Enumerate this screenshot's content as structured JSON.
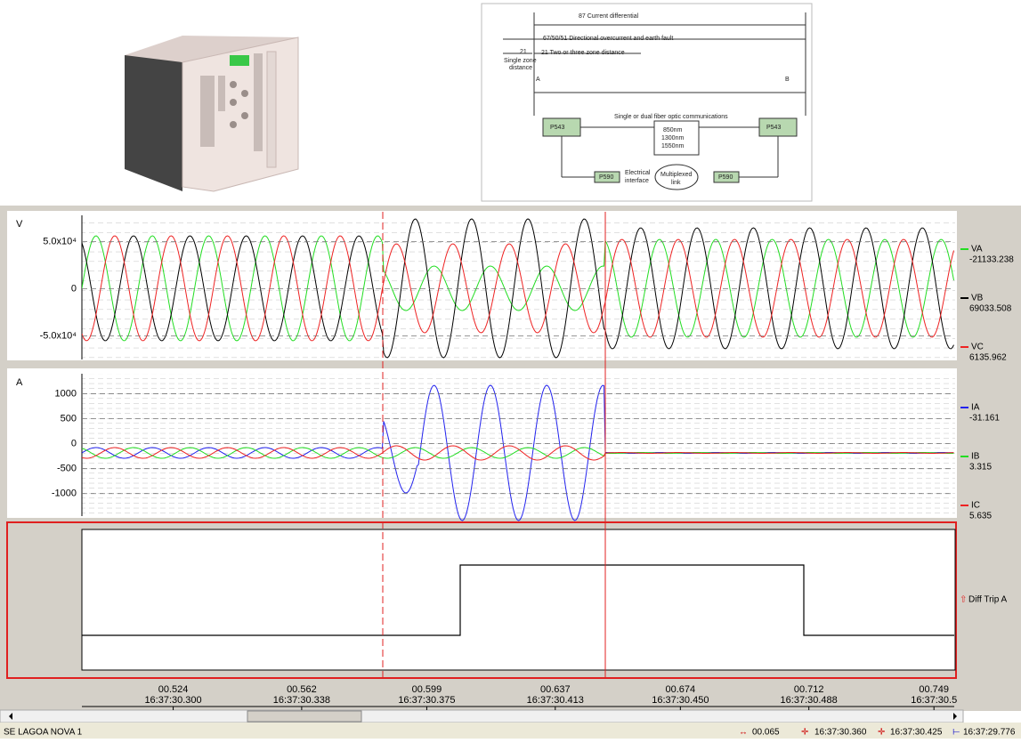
{
  "diagram": {
    "zone_87": "87 Current differential",
    "zone_67": "67/50/51 Directional overcurrent and earth fault",
    "zone_21_left": "21",
    "zone_21": "21 Two or three zone distance",
    "single_zone": [
      "Single zone",
      "distance"
    ],
    "end_a": "A",
    "end_b": "B",
    "fiber": "Single or dual fiber optic communications",
    "relay_left": "P543",
    "relay_right": "P543",
    "wavelengths": [
      "850nm",
      "1300nm",
      "1550nm"
    ],
    "mux_left": "P590",
    "mux_right": "P590",
    "electrical": [
      "Electrical",
      "interface"
    ],
    "multiplexed": [
      "Multiplexed",
      "link"
    ]
  },
  "oscillography": {
    "xlim": [
      0.497,
      0.755
    ],
    "xticks": [
      {
        "value": 0.524,
        "label": "00.524",
        "time": "16:37:30.300"
      },
      {
        "value": 0.562,
        "label": "00.562",
        "time": "16:37:30.338"
      },
      {
        "value": 0.599,
        "label": "00.599",
        "time": "16:37:30.375"
      },
      {
        "value": 0.637,
        "label": "00.637",
        "time": "16:37:30.413"
      },
      {
        "value": 0.674,
        "label": "00.674",
        "time": "16:37:30.450"
      },
      {
        "value": 0.712,
        "label": "00.712",
        "time": "16:37:30.488"
      },
      {
        "value": 0.749,
        "label": "00.749",
        "time": "16:37:30.5"
      }
    ],
    "panels": [
      {
        "axis_label": "V",
        "ylim": [
          -75000,
          78000
        ],
        "yticks": [
          {
            "value": 50000,
            "label": "5.0x10⁴"
          },
          0,
          {
            "value": -50000,
            "label": "-5.0x10⁴"
          }
        ],
        "series": [
          {
            "name": "VA",
            "color": "#22dd22",
            "value": -21133.238
          },
          {
            "name": "VB",
            "color": "#000000",
            "value": 69033.508
          },
          {
            "name": "VC",
            "color": "#ee2222",
            "value": 6135.962
          }
        ]
      },
      {
        "axis_label": "A",
        "ylim": [
          -1450,
          1400
        ],
        "yticks": [
          1000,
          500,
          0,
          -500,
          -1000
        ],
        "series": [
          {
            "name": "IA",
            "color": "#2222ee",
            "value": -31.161
          },
          {
            "name": "IB",
            "color": "#22dd22",
            "value": 3.315
          },
          {
            "name": "IC",
            "color": "#ee2222",
            "value": 5.635
          }
        ]
      }
    ],
    "digital": {
      "name": "Diff Trip A"
    }
  },
  "status_bar": {
    "station": "SE LAGOA NOVA  1",
    "delta": "00.065",
    "cursor_1": "16:37:30.360",
    "cursor_2": "16:37:30.425",
    "start": "16:37:29.776"
  }
}
